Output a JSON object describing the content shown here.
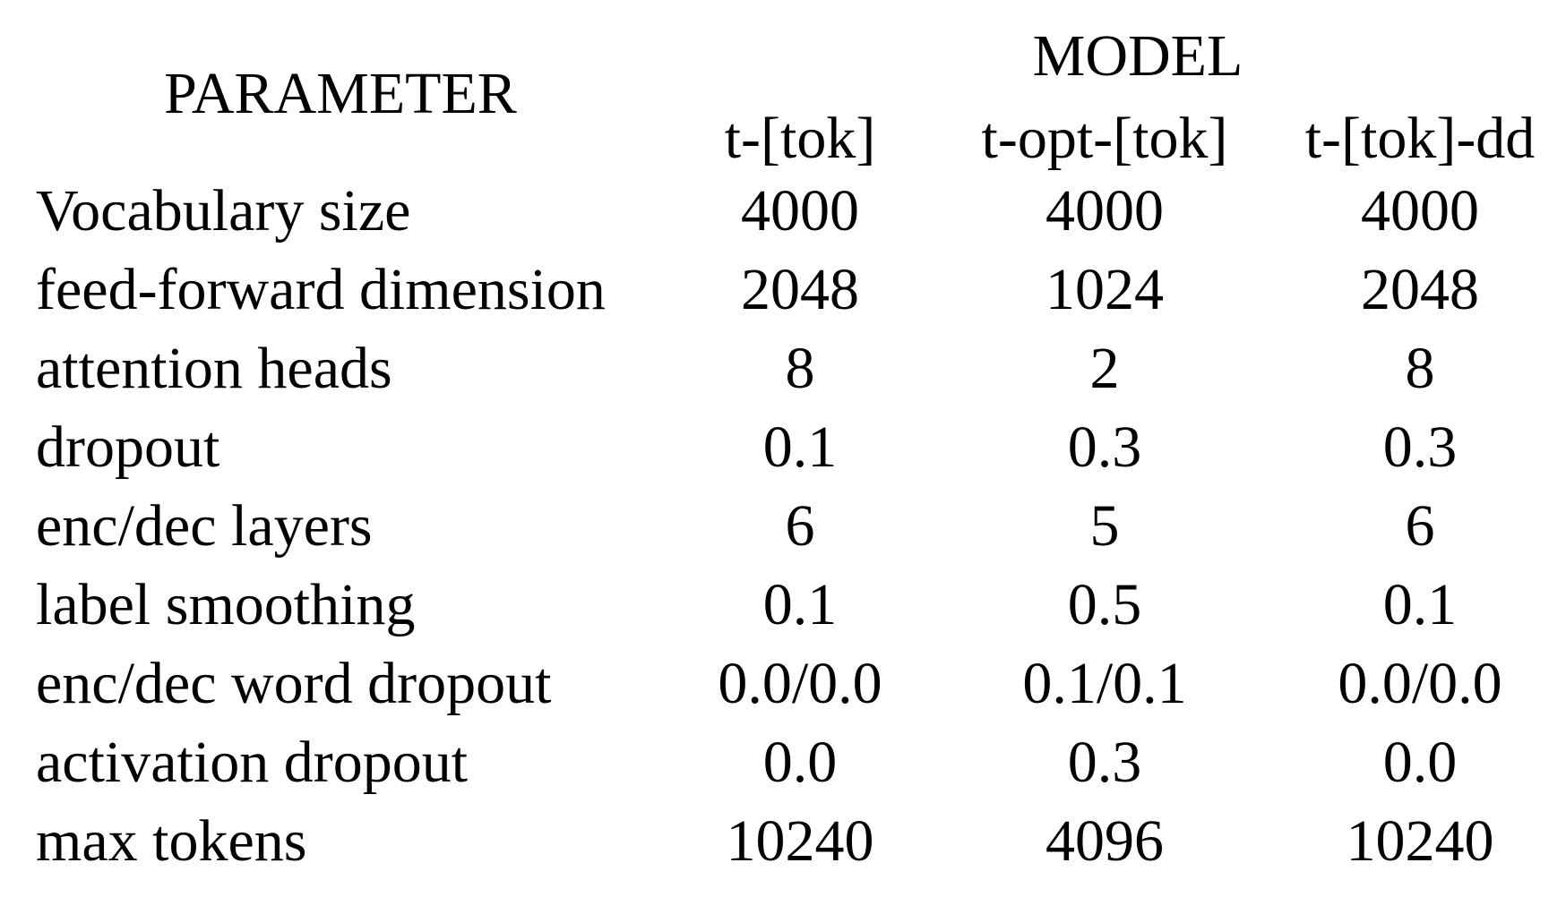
{
  "table": {
    "param_header": "PARAMETER",
    "model_header": "MODEL",
    "columns": [
      "t-[tok]",
      "t-opt-[tok]",
      "t-[tok]-dd"
    ],
    "rows": [
      {
        "label": "Vocabulary size",
        "values": [
          "4000",
          "4000",
          "4000"
        ]
      },
      {
        "label": "feed-forward dimension",
        "values": [
          "2048",
          "1024",
          "2048"
        ]
      },
      {
        "label": "attention heads",
        "values": [
          "8",
          "2",
          "8"
        ]
      },
      {
        "label": "dropout",
        "values": [
          "0.1",
          "0.3",
          "0.3"
        ]
      },
      {
        "label": "enc/dec layers",
        "values": [
          "6",
          "5",
          "6"
        ]
      },
      {
        "label": "label smoothing",
        "values": [
          "0.1",
          "0.5",
          "0.1"
        ]
      },
      {
        "label": "enc/dec word dropout",
        "values": [
          "0.0/0.0",
          "0.1/0.1",
          "0.0/0.0"
        ]
      },
      {
        "label": "activation dropout",
        "values": [
          "0.0",
          "0.3",
          "0.0"
        ]
      },
      {
        "label": "max tokens",
        "values": [
          "10240",
          "4096",
          "10240"
        ]
      }
    ]
  }
}
